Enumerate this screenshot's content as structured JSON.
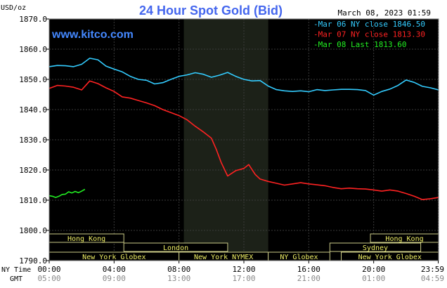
{
  "chart_data": {
    "type": "line",
    "title": "24 Hour Spot Gold (Bid)",
    "ylabel": "USD/oz",
    "watermark": "www.kitco.com",
    "timestamp": "March 08, 2023 01:59",
    "ylim": [
      1790,
      1870
    ],
    "yticks": [
      "1870.0",
      "1860.0",
      "1850.0",
      "1840.0",
      "1830.0",
      "1820.0",
      "1810.0",
      "1800.0",
      "1790.0"
    ],
    "x_axis_ny_label": "NY Time",
    "x_axis_gmt_label": "GMT",
    "x_ticks_ny": [
      "00:00",
      "04:00",
      "08:00",
      "12:00",
      "16:00",
      "20:00",
      "23:59"
    ],
    "x_ticks_gmt": [
      "05:00",
      "09:00",
      "13:00",
      "17:00",
      "21:00",
      "01:00",
      "04:59"
    ],
    "x_tick_hours": [
      0,
      4,
      8,
      12,
      16,
      20,
      23.98
    ],
    "shaded_region_hours": [
      8.3,
      13.5
    ],
    "legend": [
      {
        "label": "Mar 06 NY close 1846.50",
        "color": "#33ccff"
      },
      {
        "label": "Mar 07 NY close 1813.30",
        "color": "#ff2222"
      },
      {
        "label": "Mar 08 Last 1813.60",
        "color": "#22ee22"
      }
    ],
    "sessions": [
      {
        "label": "Hong Kong",
        "row": 0,
        "start": 0,
        "end": 4.6
      },
      {
        "label": "London",
        "row": 1,
        "start": 4.6,
        "end": 11.0
      },
      {
        "label": "New York Globex",
        "row": 2,
        "start": 0,
        "end": 8.0
      },
      {
        "label": "New York NYMEX",
        "row": 2,
        "start": 8.0,
        "end": 13.5
      },
      {
        "label": "NY Globex",
        "row": 2,
        "start": 13.5,
        "end": 17.3
      },
      {
        "label": "Hong Kong",
        "row": 0,
        "start": 19.8,
        "end": 24
      },
      {
        "label": "Sydney",
        "row": 1,
        "start": 17.3,
        "end": 22.9
      },
      {
        "label": "New York Globex",
        "row": 2,
        "start": 18.0,
        "end": 24
      }
    ],
    "series": [
      {
        "name": "Mar 06 NY close 1846.50",
        "color": "#33ccff",
        "x": [
          0,
          0.5,
          1.0,
          1.5,
          2.0,
          2.5,
          3.0,
          3.5,
          4.0,
          4.5,
          5.0,
          5.5,
          6.0,
          6.5,
          7.0,
          7.5,
          8.0,
          8.5,
          9.0,
          9.5,
          10.0,
          10.5,
          11.0,
          11.5,
          12.0,
          12.5,
          13.0,
          13.5,
          14.0,
          14.5,
          15.0,
          15.5,
          16.0,
          16.5,
          17.0,
          17.5,
          18.0,
          18.5,
          19.0,
          19.5,
          20.0,
          20.5,
          21.0,
          21.5,
          22.0,
          22.5,
          23.0,
          23.5,
          24.0
        ],
        "y": [
          1854.2,
          1854.6,
          1854.5,
          1854.2,
          1855.0,
          1857.0,
          1856.5,
          1854.4,
          1853.4,
          1852.5,
          1851.0,
          1850.0,
          1849.7,
          1848.5,
          1848.9,
          1850.0,
          1851.0,
          1851.5,
          1852.2,
          1851.7,
          1850.7,
          1851.4,
          1852.3,
          1851.0,
          1850.0,
          1849.5,
          1849.6,
          1847.8,
          1846.6,
          1846.2,
          1846.0,
          1846.2,
          1845.9,
          1846.6,
          1846.3,
          1846.5,
          1846.7,
          1846.7,
          1846.6,
          1846.3,
          1844.8,
          1846.0,
          1846.8,
          1848.0,
          1849.8,
          1849.0,
          1847.7,
          1847.2,
          1846.5
        ]
      },
      {
        "name": "Mar 07 NY close 1813.30",
        "color": "#ff2222",
        "x": [
          0,
          0.5,
          1.0,
          1.5,
          2.0,
          2.5,
          3.0,
          3.5,
          4.0,
          4.5,
          5.0,
          5.5,
          6.0,
          6.5,
          7.0,
          7.5,
          8.0,
          8.5,
          9.0,
          9.5,
          10.0,
          10.3,
          10.6,
          11.0,
          11.5,
          12.0,
          12.3,
          12.7,
          13.0,
          13.5,
          14.0,
          14.5,
          15.0,
          15.5,
          16.0,
          16.5,
          17.0,
          17.5,
          18.0,
          18.5,
          19.0,
          19.5,
          20.0,
          20.5,
          21.0,
          21.5,
          22.0,
          22.5,
          23.0,
          23.5,
          24.0
        ],
        "y": [
          1847.0,
          1848.0,
          1847.8,
          1847.4,
          1846.5,
          1849.5,
          1848.6,
          1847.2,
          1846.0,
          1844.2,
          1843.8,
          1843.0,
          1842.2,
          1841.3,
          1840.0,
          1839.0,
          1838.0,
          1836.6,
          1834.5,
          1832.6,
          1830.5,
          1826.8,
          1822.5,
          1818.0,
          1819.8,
          1820.5,
          1821.8,
          1818.5,
          1817.0,
          1816.2,
          1815.6,
          1815.0,
          1815.4,
          1815.8,
          1815.4,
          1815.1,
          1814.8,
          1814.2,
          1813.8,
          1814.0,
          1813.8,
          1813.7,
          1813.4,
          1813.0,
          1813.4,
          1813.0,
          1812.2,
          1811.3,
          1810.2,
          1810.5,
          1810.9
        ]
      },
      {
        "name": "Mar 08 Last 1813.60",
        "color": "#22ee22",
        "x": [
          0,
          0.2,
          0.4,
          0.6,
          0.8,
          1.0,
          1.2,
          1.4,
          1.6,
          1.8,
          2.0,
          2.2
        ],
        "y": [
          1811.5,
          1811.3,
          1810.9,
          1811.3,
          1811.9,
          1812.0,
          1812.8,
          1812.4,
          1812.9,
          1812.5,
          1813.0,
          1813.6
        ]
      }
    ]
  }
}
